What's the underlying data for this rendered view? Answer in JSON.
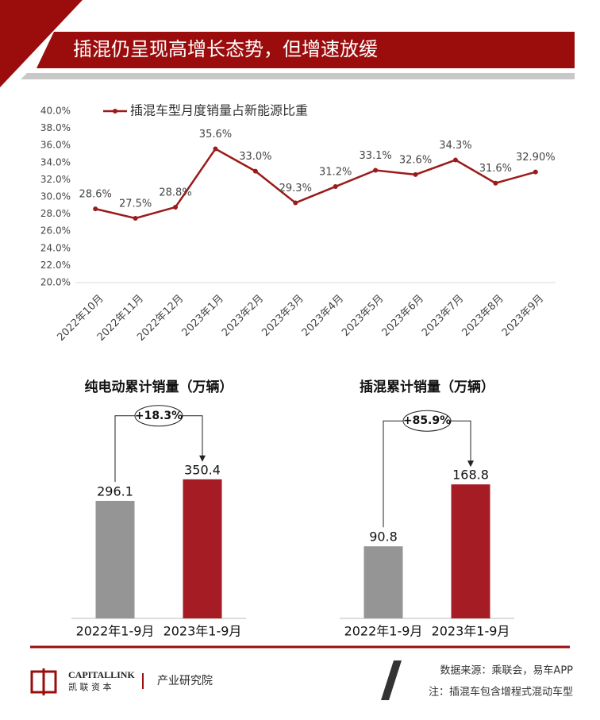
{
  "header": {
    "title": "插混仍呈现高增长态势，但增速放缓"
  },
  "chart_data": [
    {
      "type": "line",
      "categories": [
        "2022年10月",
        "2022年11月",
        "2022年12月",
        "2023年1月",
        "2023年2月",
        "2023年3月",
        "2023年4月",
        "2023年5月",
        "2023年6月",
        "2023年7月",
        "2023年8月",
        "2023年9月"
      ],
      "series": [
        {
          "name": "插混车型月度销量占新能源比重",
          "color": "#9b1b1b",
          "values": [
            28.6,
            27.5,
            28.8,
            35.6,
            33.0,
            29.3,
            31.2,
            33.1,
            32.6,
            34.3,
            31.6,
            32.9
          ],
          "value_labels": [
            "28.6%",
            "27.5%",
            "28.8%",
            "35.6%",
            "33.0%",
            "29.3%",
            "31.2%",
            "33.1%",
            "32.6%",
            "34.3%",
            "31.6%",
            "32.90%"
          ]
        }
      ],
      "ylim": [
        20,
        40
      ],
      "yticks": [
        {
          "value": 20,
          "label": "20.0%"
        },
        {
          "value": 22,
          "label": "22.0%"
        },
        {
          "value": 24,
          "label": "24.0%"
        },
        {
          "value": 26,
          "label": "26.0%"
        },
        {
          "value": 28,
          "label": "28.0%"
        },
        {
          "value": 30,
          "label": "30.0%"
        },
        {
          "value": 32,
          "label": "32.0%"
        },
        {
          "value": 34,
          "label": "34.0%"
        },
        {
          "value": 36,
          "label": "36.0%"
        },
        {
          "value": 38,
          "label": "38.0%"
        },
        {
          "value": 40,
          "label": "40.0%"
        }
      ],
      "legend": "top-left"
    },
    {
      "type": "bar",
      "title": "纯电动累计销量（万辆）",
      "categories": [
        "2022年1-9月",
        "2023年1-9月"
      ],
      "values": [
        296.1,
        350.4
      ],
      "colors": [
        "#959595",
        "#a51c24"
      ],
      "ylim": [
        0,
        400
      ],
      "annotation": "+18.3%"
    },
    {
      "type": "bar",
      "title": "插混累计销量（万辆）",
      "categories": [
        "2022年1-9月",
        "2023年1-9月"
      ],
      "values": [
        90.8,
        168.8
      ],
      "colors": [
        "#959595",
        "#a51c24"
      ],
      "ylim": [
        0,
        200
      ],
      "annotation": "+85.9%"
    }
  ],
  "footer": {
    "logo_en": "CAPITALLINK",
    "logo_cn": "凯 联 资 本",
    "dept": "产业研究院",
    "source": "数据来源：乘联会，易车APP",
    "note": "注：插混车包含增程式混动车型"
  }
}
